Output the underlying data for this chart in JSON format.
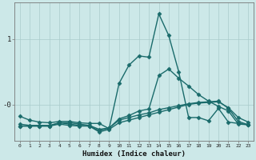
{
  "background_color": "#cce8e8",
  "grid_color": "#aacccc",
  "line_color": "#1a6b6b",
  "xlabel": "Humidex (Indice chaleur)",
  "x_ticks": [
    0,
    1,
    2,
    3,
    4,
    5,
    6,
    7,
    8,
    9,
    10,
    11,
    12,
    13,
    14,
    15,
    16,
    17,
    18,
    19,
    20,
    21,
    22,
    23
  ],
  "ytick_labels": [
    "1",
    "-0"
  ],
  "ytick_positions": [
    1.0,
    0.0
  ],
  "ylim": [
    -0.55,
    1.55
  ],
  "xlim": [
    -0.5,
    23.5
  ],
  "lines": [
    {
      "x": [
        0,
        1,
        2,
        3,
        4,
        5,
        6,
        7,
        8,
        9,
        10,
        11,
        12,
        13,
        14,
        15,
        16,
        17,
        18,
        19,
        20,
        21,
        22,
        23
      ],
      "y": [
        -0.18,
        -0.24,
        -0.27,
        -0.28,
        -0.26,
        -0.26,
        -0.28,
        -0.29,
        -0.29,
        -0.37,
        0.32,
        0.6,
        0.74,
        0.72,
        1.38,
        1.05,
        0.5,
        -0.2,
        -0.2,
        -0.25,
        -0.06,
        -0.27,
        -0.29,
        -0.31
      ],
      "marker": "D",
      "markersize": 2.5,
      "linewidth": 1.0
    },
    {
      "x": [
        0,
        1,
        2,
        3,
        4,
        5,
        6,
        7,
        8,
        9,
        10,
        11,
        12,
        13,
        14,
        15,
        16,
        17,
        18,
        19,
        20,
        21,
        22,
        23
      ],
      "y": [
        -0.3,
        -0.32,
        -0.32,
        -0.32,
        -0.28,
        -0.28,
        -0.3,
        -0.32,
        -0.38,
        -0.36,
        -0.22,
        -0.17,
        -0.1,
        -0.07,
        0.44,
        0.54,
        0.4,
        0.28,
        0.15,
        0.05,
        -0.03,
        -0.1,
        -0.3,
        -0.31
      ],
      "marker": "D",
      "markersize": 2.5,
      "linewidth": 1.0
    },
    {
      "x": [
        0,
        1,
        2,
        3,
        4,
        5,
        6,
        7,
        8,
        9,
        10,
        11,
        12,
        13,
        14,
        15,
        16,
        17,
        18,
        19,
        20,
        21,
        22,
        23
      ],
      "y": [
        -0.33,
        -0.33,
        -0.33,
        -0.33,
        -0.28,
        -0.3,
        -0.32,
        -0.33,
        -0.42,
        -0.38,
        -0.28,
        -0.24,
        -0.2,
        -0.16,
        -0.12,
        -0.08,
        -0.04,
        0.0,
        0.02,
        0.03,
        0.04,
        -0.05,
        -0.2,
        -0.27
      ],
      "marker": "D",
      "markersize": 2.5,
      "linewidth": 1.0
    },
    {
      "x": [
        0,
        1,
        2,
        3,
        4,
        5,
        6,
        7,
        8,
        9,
        10,
        11,
        12,
        13,
        14,
        15,
        16,
        17,
        18,
        19,
        20,
        21,
        22,
        23
      ],
      "y": [
        -0.33,
        -0.33,
        -0.33,
        -0.33,
        -0.3,
        -0.32,
        -0.33,
        -0.33,
        -0.4,
        -0.36,
        -0.24,
        -0.2,
        -0.16,
        -0.13,
        -0.08,
        -0.05,
        -0.02,
        0.01,
        0.03,
        0.04,
        0.05,
        -0.06,
        -0.26,
        -0.31
      ],
      "marker": "D",
      "markersize": 2.5,
      "linewidth": 1.0
    }
  ]
}
